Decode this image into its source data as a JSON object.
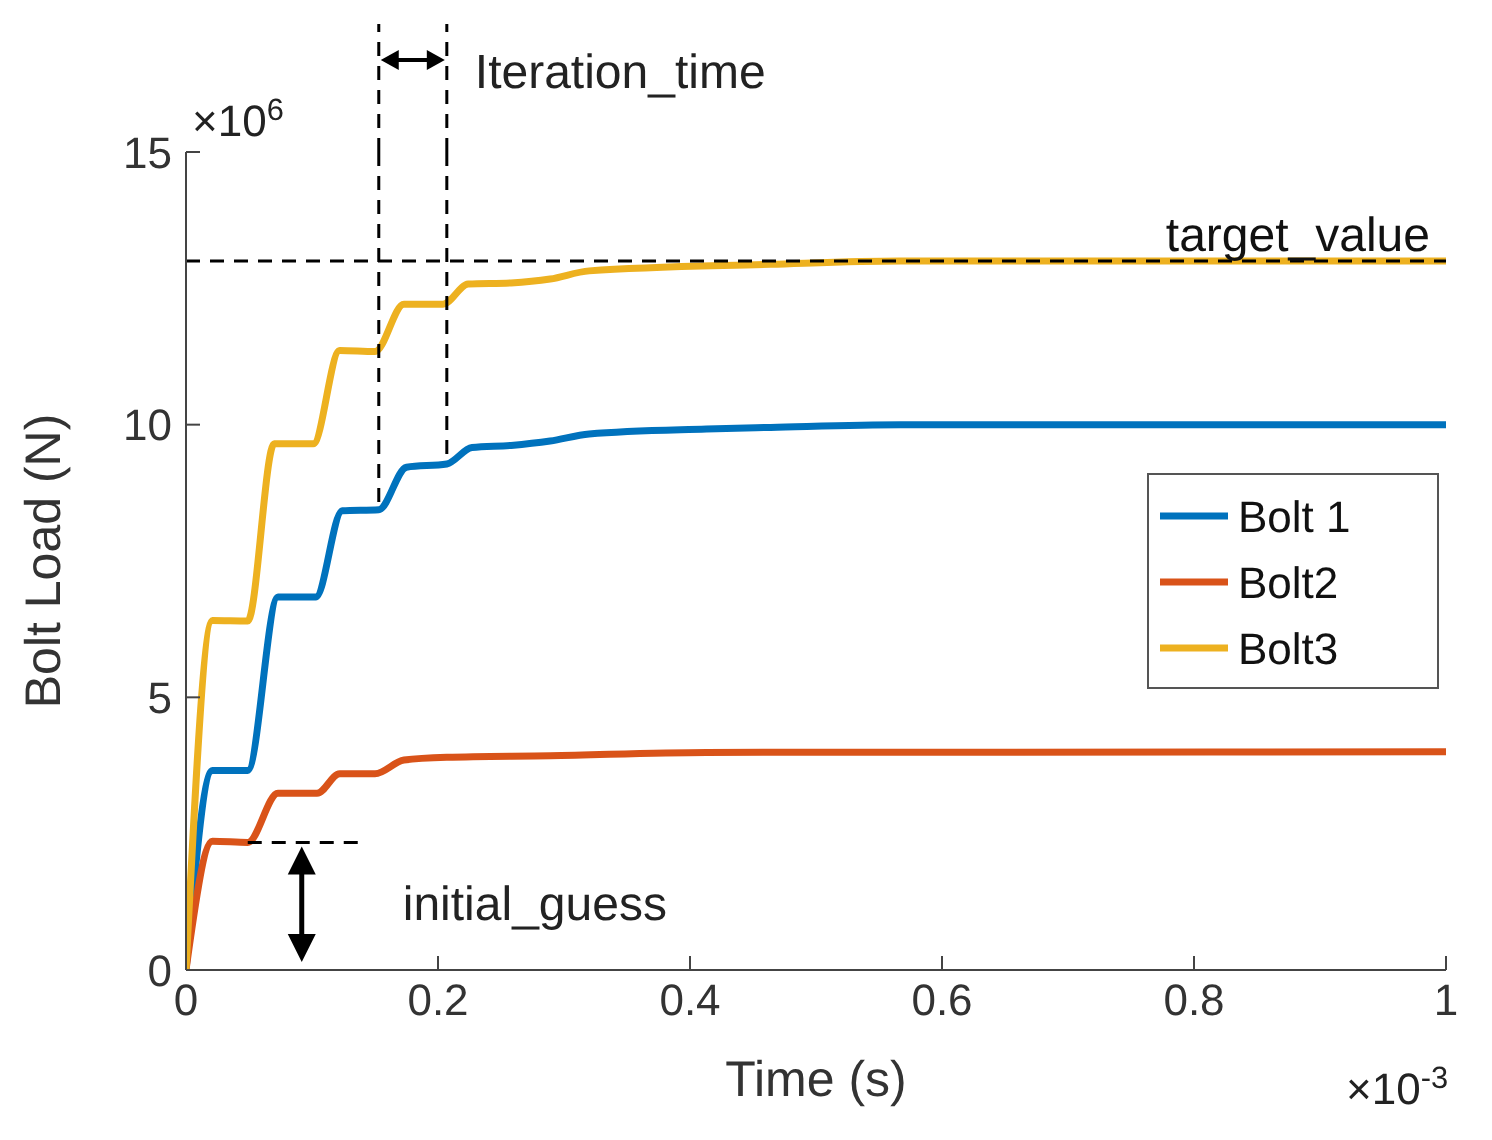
{
  "chart_data": {
    "type": "line",
    "xlabel": "Time (s)",
    "ylabel": "Bolt Load (N)",
    "xlim": [
      0,
      1
    ],
    "xticks": [
      0,
      0.2,
      0.4,
      0.6,
      0.8,
      1
    ],
    "ylim": [
      0,
      15
    ],
    "yticks": [
      0,
      5,
      10,
      15
    ],
    "legend": "right",
    "marker": "none",
    "line_style": "solid",
    "series": [
      {
        "name": "Bolt 1",
        "color": "#0072bd",
        "x": [
          0,
          0.021,
          0.049,
          0.073,
          0.103,
          0.124,
          0.153,
          0.175,
          0.207,
          0.227,
          0.258,
          0.289,
          0.32,
          0.413,
          0.464,
          0.567,
          1
        ],
        "values": [
          0,
          3.66,
          3.66,
          6.84,
          6.84,
          8.42,
          8.44,
          9.22,
          9.28,
          9.58,
          9.62,
          9.7,
          9.83,
          9.92,
          9.95,
          10.0,
          10.0
        ]
      },
      {
        "name": "Bolt2",
        "color": "#d95319",
        "x": [
          0,
          0.021,
          0.049,
          0.073,
          0.104,
          0.122,
          0.15,
          0.173,
          0.207,
          0.289,
          0.413,
          1
        ],
        "values": [
          0,
          2.36,
          2.34,
          3.24,
          3.24,
          3.6,
          3.6,
          3.85,
          3.9,
          3.93,
          3.99,
          4.0
        ]
      },
      {
        "name": "Bolt3",
        "color": "#edb120",
        "x": [
          0,
          0.021,
          0.049,
          0.07,
          0.101,
          0.122,
          0.15,
          0.173,
          0.204,
          0.224,
          0.258,
          0.289,
          0.32,
          0.464,
          0.567,
          1
        ],
        "values": [
          0,
          6.41,
          6.4,
          9.65,
          9.65,
          11.36,
          11.34,
          12.21,
          12.21,
          12.58,
          12.6,
          12.67,
          12.82,
          12.94,
          13.0,
          13.0
        ]
      }
    ],
    "ref_lines": [
      {
        "axis": "y",
        "value": 13,
        "label": "target_value",
        "color": "#000000",
        "line_style": "dashed"
      },
      {
        "axis": "x",
        "value": 0.153,
        "label": null,
        "color": "#000000",
        "line_style": "dashed"
      },
      {
        "axis": "x",
        "value": 0.207,
        "label": null,
        "color": "#000000",
        "line_style": "dashed"
      }
    ],
    "annotations": [
      "×10$^{6}$",
      "×10$^{-3}$",
      "Iteration_time",
      {
        "text": "initial_guess",
        "x": 0.049,
        "y": 2.34
      }
    ]
  }
}
